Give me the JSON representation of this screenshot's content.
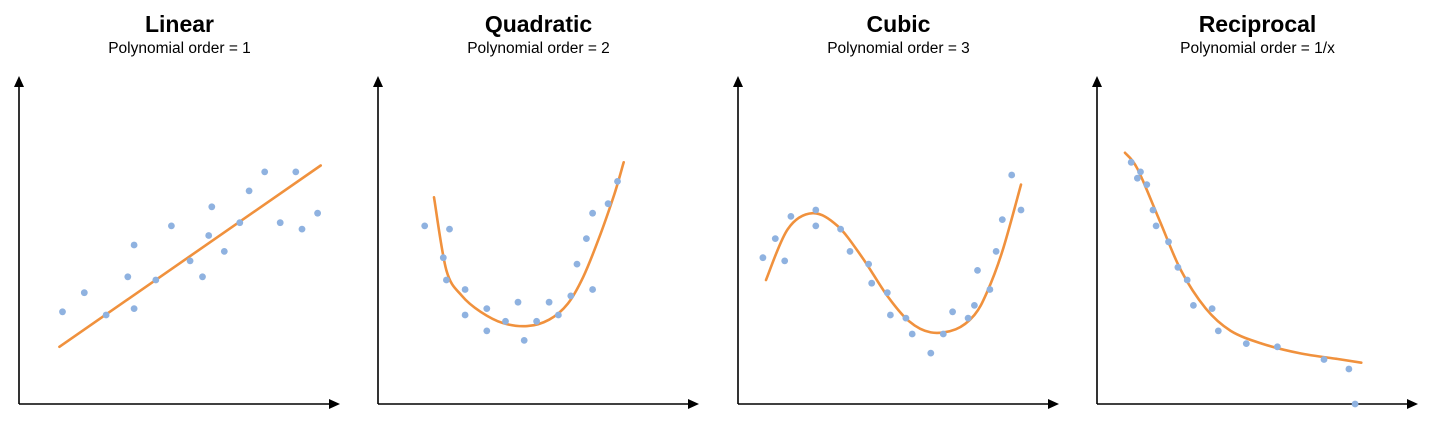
{
  "chart_data": [
    {
      "type": "scatter",
      "title": "Linear",
      "subtitle": "Polynomial order = 1",
      "xlim": [
        0,
        10
      ],
      "ylim": [
        0,
        10
      ],
      "grid": false,
      "colors": {
        "points": "#8fb2e0",
        "curve": "#f0913d",
        "axes": "#000000"
      },
      "points": [
        [
          1.4,
          2.9
        ],
        [
          2.1,
          3.5
        ],
        [
          2.8,
          2.8
        ],
        [
          3.5,
          4.0
        ],
        [
          3.7,
          5.0
        ],
        [
          3.7,
          3.0
        ],
        [
          4.4,
          3.9
        ],
        [
          4.9,
          5.6
        ],
        [
          5.5,
          4.5
        ],
        [
          5.9,
          4.0
        ],
        [
          6.1,
          5.3
        ],
        [
          6.2,
          6.2
        ],
        [
          6.6,
          4.8
        ],
        [
          7.1,
          5.7
        ],
        [
          7.4,
          6.7
        ],
        [
          7.9,
          7.3
        ],
        [
          8.4,
          5.7
        ],
        [
          8.9,
          7.3
        ],
        [
          9.1,
          5.5
        ],
        [
          9.6,
          6.0
        ]
      ],
      "curve": [
        [
          1.3,
          1.8
        ],
        [
          9.7,
          7.5
        ]
      ]
    },
    {
      "type": "scatter",
      "title": "Quadratic",
      "subtitle": "Polynomial order = 2",
      "xlim": [
        0,
        10
      ],
      "ylim": [
        0,
        10
      ],
      "grid": false,
      "colors": {
        "points": "#8fb2e0",
        "curve": "#f0913d",
        "axes": "#000000"
      },
      "points": [
        [
          1.5,
          5.6
        ],
        [
          2.1,
          4.6
        ],
        [
          2.2,
          3.9
        ],
        [
          2.3,
          5.5
        ],
        [
          2.8,
          3.6
        ],
        [
          2.8,
          2.8
        ],
        [
          3.5,
          2.3
        ],
        [
          3.5,
          3.0
        ],
        [
          4.1,
          2.6
        ],
        [
          4.5,
          3.2
        ],
        [
          4.7,
          2.0
        ],
        [
          5.1,
          2.6
        ],
        [
          5.5,
          3.2
        ],
        [
          5.8,
          2.8
        ],
        [
          6.2,
          3.4
        ],
        [
          6.4,
          4.4
        ],
        [
          6.7,
          5.2
        ],
        [
          6.9,
          6.0
        ],
        [
          6.9,
          3.6
        ],
        [
          7.4,
          6.3
        ],
        [
          7.7,
          7.0
        ]
      ],
      "curve": [
        [
          1.8,
          6.5
        ],
        [
          2.2,
          4.2
        ],
        [
          2.7,
          3.4
        ],
        [
          3.3,
          2.9
        ],
        [
          4.0,
          2.55
        ],
        [
          4.8,
          2.45
        ],
        [
          5.5,
          2.65
        ],
        [
          6.1,
          3.15
        ],
        [
          6.6,
          4.0
        ],
        [
          7.1,
          5.2
        ],
        [
          7.6,
          6.6
        ],
        [
          7.9,
          7.6
        ]
      ]
    },
    {
      "type": "scatter",
      "title": "Cubic",
      "subtitle": "Polynomial order = 3",
      "xlim": [
        0,
        10
      ],
      "ylim": [
        0,
        10
      ],
      "grid": false,
      "colors": {
        "points": "#8fb2e0",
        "curve": "#f0913d",
        "axes": "#000000"
      },
      "points": [
        [
          0.8,
          4.6
        ],
        [
          1.2,
          5.2
        ],
        [
          1.5,
          4.5
        ],
        [
          1.7,
          5.9
        ],
        [
          2.5,
          6.1
        ],
        [
          2.5,
          5.6
        ],
        [
          3.3,
          5.5
        ],
        [
          3.6,
          4.8
        ],
        [
          4.2,
          4.4
        ],
        [
          4.3,
          3.8
        ],
        [
          4.8,
          3.5
        ],
        [
          4.9,
          2.8
        ],
        [
          5.4,
          2.7
        ],
        [
          5.6,
          2.2
        ],
        [
          6.2,
          1.6
        ],
        [
          6.6,
          2.2
        ],
        [
          6.9,
          2.9
        ],
        [
          7.4,
          2.7
        ],
        [
          7.6,
          3.1
        ],
        [
          7.7,
          4.2
        ],
        [
          8.1,
          3.6
        ],
        [
          8.3,
          4.8
        ],
        [
          8.5,
          5.8
        ],
        [
          8.8,
          7.2
        ],
        [
          9.1,
          6.1
        ]
      ],
      "curve": [
        [
          0.9,
          3.9
        ],
        [
          1.6,
          5.5
        ],
        [
          2.4,
          6.0
        ],
        [
          3.2,
          5.6
        ],
        [
          4.0,
          4.6
        ],
        [
          4.8,
          3.4
        ],
        [
          5.5,
          2.6
        ],
        [
          6.2,
          2.25
        ],
        [
          7.0,
          2.35
        ],
        [
          7.6,
          2.8
        ],
        [
          8.0,
          3.5
        ],
        [
          8.5,
          4.8
        ],
        [
          9.1,
          6.9
        ]
      ]
    },
    {
      "type": "scatter",
      "title": "Reciprocal",
      "subtitle": "Polynomial order = 1/x",
      "xlim": [
        0,
        10
      ],
      "ylim": [
        0,
        10
      ],
      "grid": false,
      "colors": {
        "points": "#8fb2e0",
        "curve": "#f0913d",
        "axes": "#000000"
      },
      "points": [
        [
          1.1,
          7.6
        ],
        [
          1.3,
          7.1
        ],
        [
          1.4,
          7.3
        ],
        [
          1.6,
          6.9
        ],
        [
          1.8,
          6.1
        ],
        [
          1.9,
          5.6
        ],
        [
          2.3,
          5.1
        ],
        [
          2.6,
          4.3
        ],
        [
          2.9,
          3.9
        ],
        [
          3.1,
          3.1
        ],
        [
          3.7,
          3.0
        ],
        [
          3.9,
          2.3
        ],
        [
          4.8,
          1.9
        ],
        [
          5.8,
          1.8
        ],
        [
          7.3,
          1.4
        ],
        [
          8.1,
          1.1
        ],
        [
          8.3,
          0.0
        ]
      ],
      "curve": [
        [
          0.9,
          7.9
        ],
        [
          1.3,
          7.4
        ],
        [
          2.0,
          5.8
        ],
        [
          2.7,
          4.2
        ],
        [
          3.5,
          3.0
        ],
        [
          4.3,
          2.3
        ],
        [
          5.3,
          1.9
        ],
        [
          6.5,
          1.6
        ],
        [
          7.7,
          1.42
        ],
        [
          8.5,
          1.3
        ]
      ]
    }
  ]
}
